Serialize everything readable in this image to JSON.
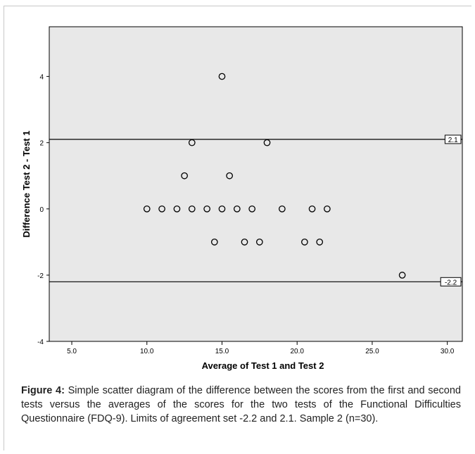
{
  "chart_data": {
    "type": "scatter",
    "xlabel": "Average of Test 1 and Test 2",
    "ylabel": "Difference Test 2 - Test 1",
    "xlim": [
      3.5,
      31
    ],
    "ylim": [
      -4,
      5.5
    ],
    "x_ticks": [
      "5.0",
      "10.0",
      "15.0",
      "20.0",
      "25.0",
      "30.0"
    ],
    "y_ticks": [
      "4",
      "2",
      "0",
      "-2",
      "-4"
    ],
    "points": [
      {
        "x": 15,
        "y": 4
      },
      {
        "x": 13,
        "y": 2
      },
      {
        "x": 18,
        "y": 2
      },
      {
        "x": 12.5,
        "y": 1
      },
      {
        "x": 15.5,
        "y": 1
      },
      {
        "x": 10,
        "y": 0
      },
      {
        "x": 11,
        "y": 0
      },
      {
        "x": 12,
        "y": 0
      },
      {
        "x": 13,
        "y": 0
      },
      {
        "x": 14,
        "y": 0
      },
      {
        "x": 15,
        "y": 0
      },
      {
        "x": 16,
        "y": 0
      },
      {
        "x": 17,
        "y": 0
      },
      {
        "x": 19,
        "y": 0
      },
      {
        "x": 21,
        "y": 0
      },
      {
        "x": 22,
        "y": 0
      },
      {
        "x": 14.5,
        "y": -1
      },
      {
        "x": 16.5,
        "y": -1
      },
      {
        "x": 17.5,
        "y": -1
      },
      {
        "x": 20.5,
        "y": -1
      },
      {
        "x": 21.5,
        "y": -1
      },
      {
        "x": 27,
        "y": -2
      }
    ],
    "reference_lines": [
      {
        "y": 2.1,
        "label": "2.1"
      },
      {
        "y": -2.2,
        "label": "-2.2"
      }
    ],
    "plot_background": "#e8e8e8",
    "grid": false
  },
  "caption": {
    "label": "Figure 4:",
    "text": " Simple scatter diagram of the difference between the scores from the first and second tests versus the averages of the scores for the two tests of the Functional Difficulties Questionnaire (FDQ-9). Limits of agreement set -2.2 and 2.1. Sample 2 (n=30)."
  }
}
